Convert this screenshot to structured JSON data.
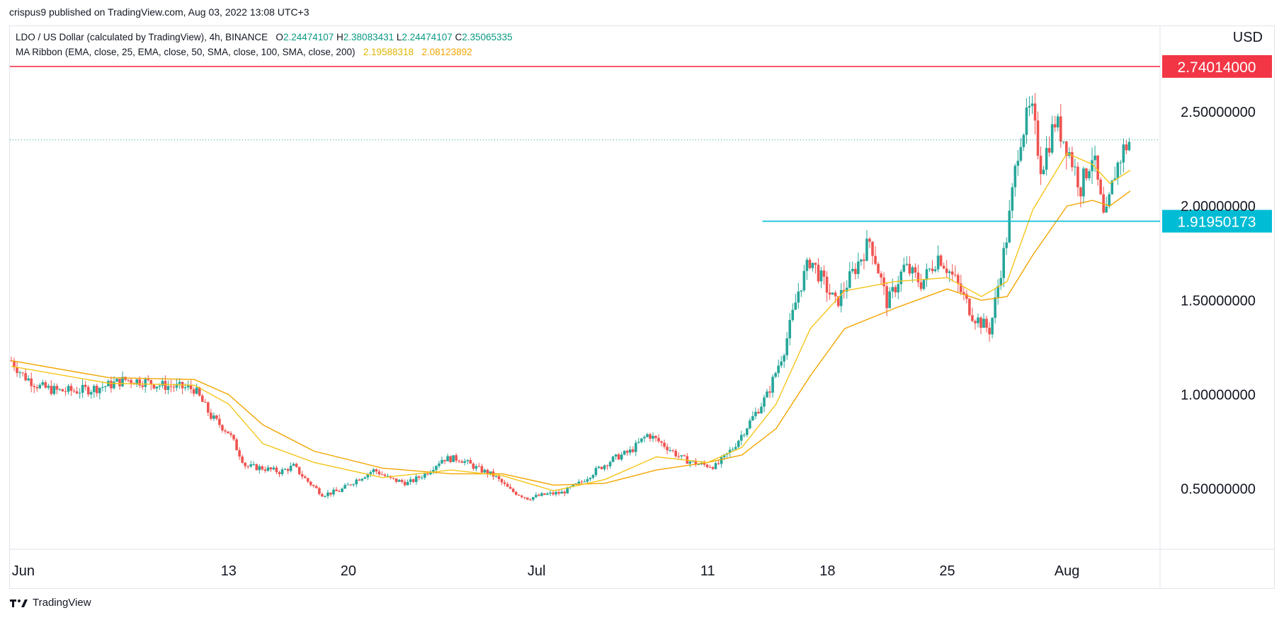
{
  "header": {
    "published": "crispus9 published on TradingView.com, Aug 03, 2022 13:08 UTC+3"
  },
  "legend": {
    "symbol_line": "LDO / US Dollar (calculated by TradingView), 4h, BINANCE",
    "open_label": "O",
    "open": "2.24474107",
    "high_label": "H",
    "high": "2.38083431",
    "low_label": "L",
    "low": "2.24474107",
    "close_label": "C",
    "close": "2.35065335",
    "ma_line": "MA Ribbon (EMA, close, 25, EMA, close, 50, SMA, close, 100, SMA, close, 200)",
    "ma1": "2.19588318",
    "ma2": "2.08123892"
  },
  "axis": {
    "currency": "USD"
  },
  "footer": {
    "brand": "TradingView"
  },
  "colors": {
    "up": "#26a69a",
    "down": "#ef5350",
    "resistance": "#f23645",
    "support": "#00bcd4",
    "ema_fast": "#f5c518",
    "ema_slow": "#f2a500",
    "last_price": "#26a69a"
  },
  "chart_data": {
    "type": "candlestick",
    "timeframe": "4h",
    "symbol": "LDO / US Dollar",
    "ylim": [
      0.18,
      2.95
    ],
    "y_ticks": [
      "0.50000000",
      "1.00000000",
      "1.50000000",
      "2.00000000",
      "2.50000000"
    ],
    "y_tick_values": [
      0.5,
      1.0,
      1.5,
      2.0,
      2.5
    ],
    "x_ticks": [
      "Jun",
      "13",
      "20",
      "Jul",
      "11",
      "18",
      "25",
      "Aug"
    ],
    "x_tick_days": [
      1,
      13,
      20,
      31,
      41,
      48,
      55,
      62
    ],
    "x_start_day": 0.3,
    "x_end_day": 65.7,
    "price_points": [
      [
        0.3,
        1.18
      ],
      [
        1,
        1.1
      ],
      [
        2,
        1.04
      ],
      [
        3,
        1.02
      ],
      [
        4,
        1.02
      ],
      [
        5,
        1.03
      ],
      [
        6,
        1.05
      ],
      [
        7,
        1.08
      ],
      [
        8,
        1.07
      ],
      [
        9,
        1.05
      ],
      [
        10,
        1.04
      ],
      [
        11,
        1.03
      ],
      [
        12,
        0.88
      ],
      [
        13,
        0.8
      ],
      [
        14,
        0.62
      ],
      [
        15,
        0.61
      ],
      [
        16,
        0.59
      ],
      [
        16.8,
        0.62
      ],
      [
        17.5,
        0.55
      ],
      [
        18.5,
        0.47
      ],
      [
        19.5,
        0.49
      ],
      [
        20.5,
        0.55
      ],
      [
        21.5,
        0.6
      ],
      [
        22.5,
        0.55
      ],
      [
        23.5,
        0.53
      ],
      [
        24.5,
        0.58
      ],
      [
        25.5,
        0.66
      ],
      [
        26.5,
        0.66
      ],
      [
        27.5,
        0.61
      ],
      [
        28.5,
        0.57
      ],
      [
        29.5,
        0.49
      ],
      [
        30.5,
        0.45
      ],
      [
        31.5,
        0.47
      ],
      [
        32.5,
        0.48
      ],
      [
        33.5,
        0.53
      ],
      [
        34.5,
        0.6
      ],
      [
        35.5,
        0.66
      ],
      [
        36.5,
        0.7
      ],
      [
        37.5,
        0.79
      ],
      [
        38.5,
        0.73
      ],
      [
        39.5,
        0.66
      ],
      [
        40.5,
        0.63
      ],
      [
        41.5,
        0.62
      ],
      [
        42.5,
        0.72
      ],
      [
        43.5,
        0.86
      ],
      [
        44.5,
        1.0
      ],
      [
        45.5,
        1.25
      ],
      [
        46.3,
        1.55
      ],
      [
        47,
        1.72
      ],
      [
        47.6,
        1.62
      ],
      [
        48.5,
        1.48
      ],
      [
        49.5,
        1.65
      ],
      [
        50.5,
        1.82
      ],
      [
        51.5,
        1.48
      ],
      [
        52.5,
        1.68
      ],
      [
        53.5,
        1.59
      ],
      [
        54.5,
        1.74
      ],
      [
        55.5,
        1.6
      ],
      [
        56.5,
        1.42
      ],
      [
        57.5,
        1.34
      ],
      [
        58.5,
        1.85
      ],
      [
        59.2,
        2.35
      ],
      [
        59.9,
        2.52
      ],
      [
        60.5,
        2.2
      ],
      [
        61.3,
        2.45
      ],
      [
        62,
        2.32
      ],
      [
        62.8,
        2.1
      ],
      [
        63.5,
        2.28
      ],
      [
        64.2,
        1.9
      ],
      [
        64.8,
        2.18
      ],
      [
        65.3,
        2.3
      ],
      [
        65.7,
        2.35
      ]
    ],
    "ema_fast_points": [
      [
        0.3,
        1.15
      ],
      [
        6,
        1.06
      ],
      [
        11,
        1.05
      ],
      [
        13,
        0.95
      ],
      [
        15,
        0.74
      ],
      [
        18,
        0.64
      ],
      [
        22,
        0.56
      ],
      [
        26,
        0.6
      ],
      [
        29,
        0.57
      ],
      [
        32,
        0.49
      ],
      [
        35,
        0.55
      ],
      [
        38,
        0.67
      ],
      [
        41,
        0.64
      ],
      [
        43,
        0.72
      ],
      [
        45,
        0.95
      ],
      [
        47,
        1.35
      ],
      [
        49,
        1.55
      ],
      [
        52,
        1.6
      ],
      [
        55,
        1.62
      ],
      [
        57,
        1.52
      ],
      [
        58.5,
        1.6
      ],
      [
        60,
        1.98
      ],
      [
        62,
        2.28
      ],
      [
        63.5,
        2.22
      ],
      [
        64.5,
        2.12
      ],
      [
        65.7,
        2.19
      ]
    ],
    "ema_slow_points": [
      [
        0.3,
        1.18
      ],
      [
        6,
        1.09
      ],
      [
        11,
        1.08
      ],
      [
        13,
        1.0
      ],
      [
        15,
        0.84
      ],
      [
        18,
        0.7
      ],
      [
        22,
        0.61
      ],
      [
        26,
        0.58
      ],
      [
        29,
        0.58
      ],
      [
        32,
        0.52
      ],
      [
        35,
        0.53
      ],
      [
        38,
        0.6
      ],
      [
        41,
        0.64
      ],
      [
        43,
        0.68
      ],
      [
        45,
        0.82
      ],
      [
        47,
        1.1
      ],
      [
        49,
        1.35
      ],
      [
        52,
        1.46
      ],
      [
        55,
        1.56
      ],
      [
        57,
        1.5
      ],
      [
        58.5,
        1.52
      ],
      [
        60,
        1.74
      ],
      [
        62,
        2.0
      ],
      [
        63.5,
        2.03
      ],
      [
        64.5,
        2.0
      ],
      [
        65.7,
        2.08
      ]
    ],
    "highlighted_levels": [
      {
        "name": "resistance",
        "value": 2.74014,
        "label": "2.74014000"
      },
      {
        "name": "support",
        "value": 1.91950173,
        "label": "1.91950173",
        "from_day": 44.2
      }
    ],
    "last_price": 2.35065335,
    "grid": false
  }
}
